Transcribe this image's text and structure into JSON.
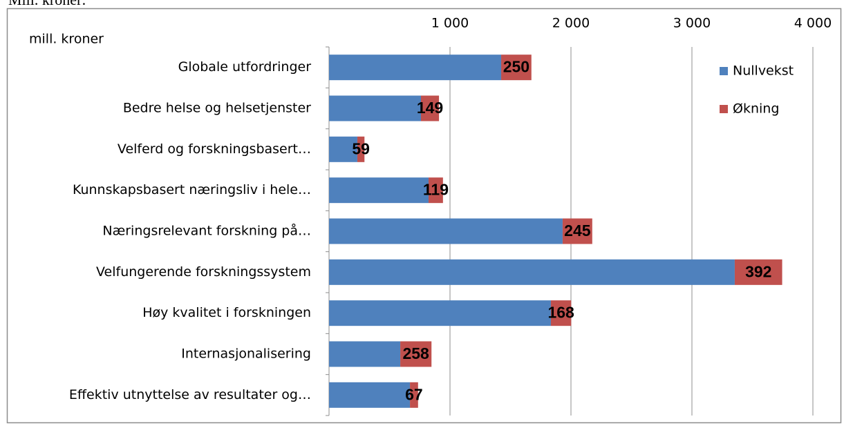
{
  "chart_data": {
    "type": "bar",
    "orientation": "horizontal",
    "stacked": true,
    "title": "Mill. kroner:",
    "unit_label": "mill. kroner",
    "categories": [
      "Globale utfordringer",
      "Bedre helse og helsetjenster",
      "Velferd og forskningsbasert…",
      "Kunnskapsbasert næringsliv i hele…",
      "Næringsrelevant forskning på…",
      "Velfungerende forskningssystem",
      "Høy kvalitet i forskningen",
      "Internasjonalisering",
      "Effektiv utnyttelse av resultater og…"
    ],
    "series": [
      {
        "name": "Nullvekst",
        "color": "#4f81bd",
        "values": [
          1423,
          760,
          234,
          823,
          1931,
          3354,
          1834,
          589,
          669
        ]
      },
      {
        "name": "Økning",
        "color": "#c0504d",
        "values": [
          250,
          149,
          59,
          119,
          245,
          392,
          168,
          258,
          67
        ],
        "show_labels": true
      }
    ],
    "xlim": [
      0,
      4000
    ],
    "xticks": [
      {
        "value": 1000,
        "label": "1 000"
      },
      {
        "value": 2000,
        "label": "2 000"
      },
      {
        "value": 3000,
        "label": "3 000"
      },
      {
        "value": 4000,
        "label": "4 000"
      }
    ],
    "grid": true,
    "legend": "upper right"
  }
}
